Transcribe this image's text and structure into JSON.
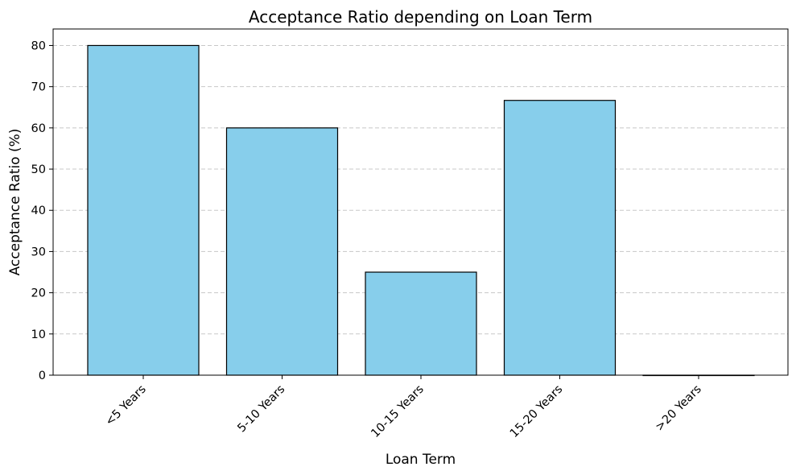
{
  "chart_data": {
    "type": "bar",
    "title": "Acceptance Ratio depending on Loan Term",
    "xlabel": "Loan Term",
    "ylabel": "Acceptance Ratio (%)",
    "categories": [
      "<5 Years",
      "5-10 Years",
      "10-15 Years",
      "15-20 Years",
      ">20 Years"
    ],
    "values": [
      80,
      60,
      25,
      66.67,
      0
    ],
    "ylim": [
      0,
      84
    ],
    "yticks": [
      0,
      10,
      20,
      30,
      40,
      50,
      60,
      70,
      80
    ],
    "x_tick_rotation_deg": 45,
    "grid": {
      "y": true,
      "x": false,
      "style": "dashed"
    },
    "colors": {
      "bar_fill": "#87ceeb",
      "bar_edge": "#000000",
      "grid": "#c8c8c8"
    }
  }
}
